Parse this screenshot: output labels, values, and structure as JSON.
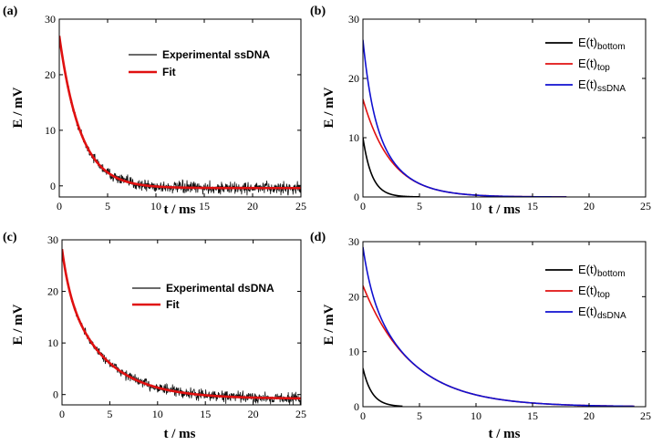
{
  "colors": {
    "experimental": "#111111",
    "fit": "#e01010",
    "bottom": "#000000",
    "top": "#e01010",
    "dna": "#1010d0"
  },
  "chart_data": [
    {
      "panel": "(a)",
      "type": "line",
      "xlabel": "t / ms",
      "ylabel": "E / mV",
      "xlim": [
        0,
        25
      ],
      "ylim": [
        -2,
        30
      ],
      "xticks": [
        0,
        5,
        10,
        15,
        20,
        25
      ],
      "yticks": [
        0,
        10,
        20,
        30
      ],
      "legend_position": "top-right",
      "series": [
        {
          "name": "Experimental ssDNA",
          "style": "noisy",
          "color": "#111111",
          "model": {
            "offset": -0.4,
            "terms": [
              {
                "a": 27.4,
                "tau": 2.2
              }
            ]
          }
        },
        {
          "name": "Fit",
          "style": "thick",
          "color": "#e01010",
          "model": {
            "offset": -0.4,
            "terms": [
              {
                "a": 27.4,
                "tau": 2.2
              }
            ]
          }
        }
      ]
    },
    {
      "panel": "(b)",
      "type": "line",
      "xlabel": "t / ms",
      "ylabel": "E / mV",
      "xlim": [
        0,
        25
      ],
      "ylim": [
        0,
        30
      ],
      "xticks": [
        0,
        5,
        10,
        15,
        20,
        25
      ],
      "yticks": [
        0,
        10,
        20,
        30
      ],
      "legend_position": "top-right",
      "series": [
        {
          "name": "E(t)",
          "sub": "bottom",
          "color": "#000000",
          "xmax": 5,
          "model": {
            "offset": 0,
            "terms": [
              {
                "a": 10,
                "tau": 0.8
              }
            ]
          }
        },
        {
          "name": "E(t)",
          "sub": "top",
          "color": "#e01010",
          "xmax": 18,
          "model": {
            "offset": 0,
            "terms": [
              {
                "a": 16.5,
                "tau": 2.5
              }
            ]
          }
        },
        {
          "name": "E(t)",
          "sub": "ssDNA",
          "color": "#1010d0",
          "xmax": 18,
          "model": {
            "offset": 0,
            "terms": [
              {
                "a": 10,
                "tau": 0.8
              },
              {
                "a": 16.5,
                "tau": 2.5
              }
            ]
          }
        }
      ]
    },
    {
      "panel": "(c)",
      "type": "line",
      "xlabel": "t / ms",
      "ylabel": "E / mV",
      "xlim": [
        0,
        25
      ],
      "ylim": [
        -2,
        30
      ],
      "xticks": [
        0,
        5,
        10,
        15,
        20,
        25
      ],
      "yticks": [
        0,
        10,
        20,
        30
      ],
      "legend_position": "top-right",
      "series": [
        {
          "name": "Experimental dsDNA",
          "style": "noisy",
          "color": "#111111",
          "model": {
            "offset": -0.8,
            "terms": [
              {
                "a": 7,
                "tau": 0.8
              },
              {
                "a": 22,
                "tau": 4.3
              }
            ]
          }
        },
        {
          "name": "Fit",
          "style": "thick",
          "color": "#e01010",
          "model": {
            "offset": -0.8,
            "terms": [
              {
                "a": 7,
                "tau": 0.8
              },
              {
                "a": 22,
                "tau": 4.3
              }
            ]
          }
        }
      ]
    },
    {
      "panel": "(d)",
      "type": "line",
      "xlabel": "t / ms",
      "ylabel": "E / mV",
      "xlim": [
        0,
        25
      ],
      "ylim": [
        0,
        30
      ],
      "xticks": [
        0,
        5,
        10,
        15,
        20,
        25
      ],
      "yticks": [
        0,
        10,
        20,
        30
      ],
      "legend_position": "top-right",
      "series": [
        {
          "name": "E(t)",
          "sub": "bottom",
          "color": "#000000",
          "xmax": 3.5,
          "model": {
            "offset": 0,
            "terms": [
              {
                "a": 7,
                "tau": 0.8
              }
            ]
          }
        },
        {
          "name": "E(t)",
          "sub": "top",
          "color": "#e01010",
          "xmax": 24,
          "model": {
            "offset": 0,
            "terms": [
              {
                "a": 22,
                "tau": 4.3
              }
            ]
          }
        },
        {
          "name": "E(t)",
          "sub": "dsDNA",
          "color": "#1010d0",
          "xmax": 24,
          "model": {
            "offset": 0,
            "terms": [
              {
                "a": 7,
                "tau": 0.8
              },
              {
                "a": 22,
                "tau": 4.3
              }
            ]
          }
        }
      ]
    }
  ]
}
